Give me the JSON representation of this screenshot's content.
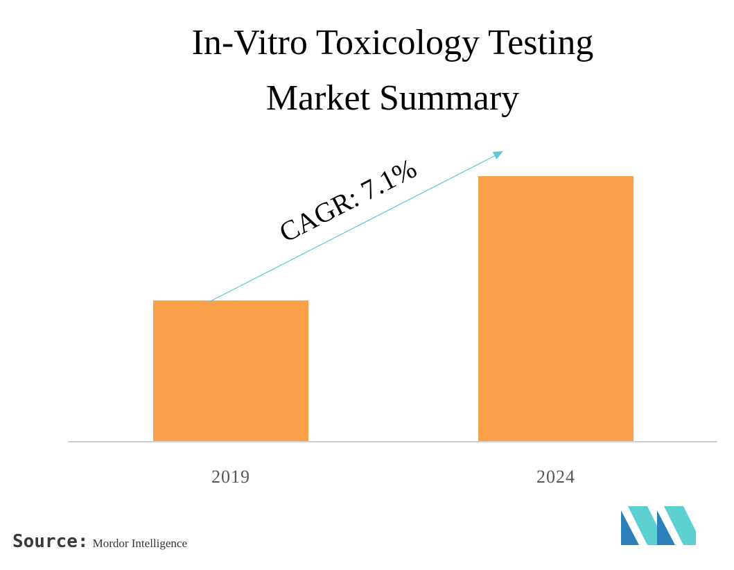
{
  "title": [
    "In-Vitro Toxicology Testing",
    "Market Summary"
  ],
  "colors": {
    "bar": "#FBA04A",
    "axis": "#D0D0D0",
    "arrow": "#5BC8D4",
    "tick_label": "#555555",
    "logo_light": "#5CCFD0",
    "logo_dark": "#2C7FB8"
  },
  "chart_data": {
    "type": "bar",
    "categories": [
      "2019",
      "2024"
    ],
    "values": [
      1.0,
      1.88
    ],
    "value_note_shown": false,
    "annotation": "CAGR: 7.1%",
    "grid": false,
    "legend": "none"
  },
  "source": {
    "label": "Source:",
    "value": "Mordor Intelligence"
  },
  "logo": {
    "icon": "mordor-intelligence-logo-icon"
  }
}
